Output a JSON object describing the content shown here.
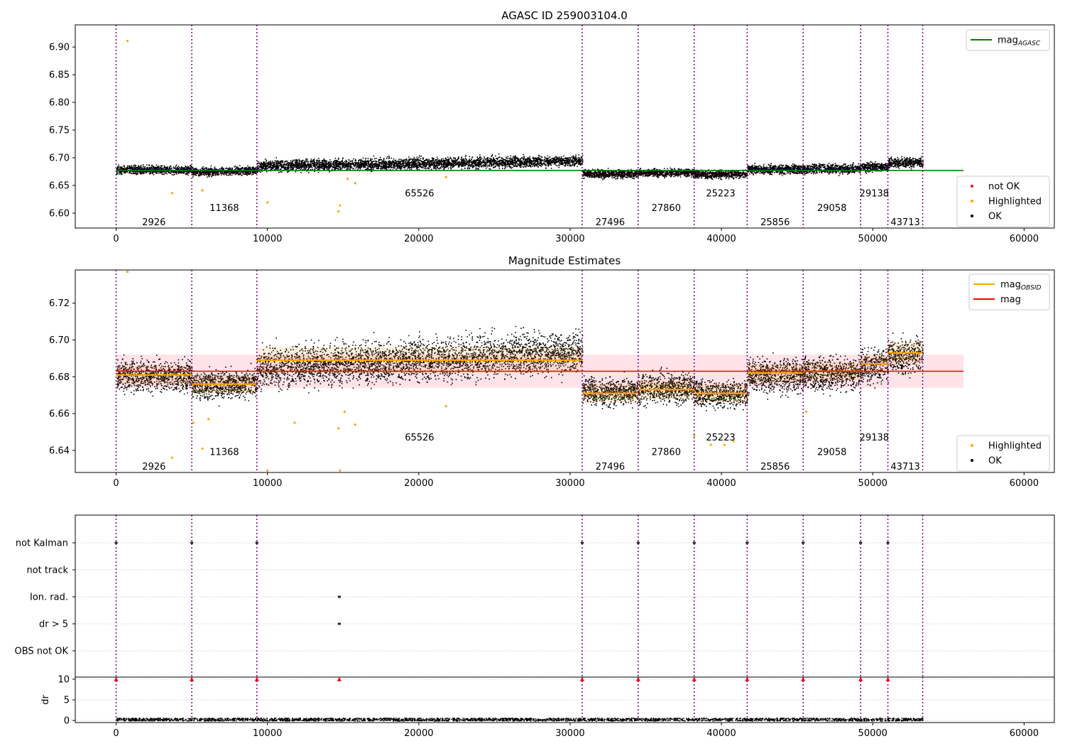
{
  "figure": {
    "title": "AGASC ID 259003104.0"
  },
  "colors": {
    "ok": "#000000",
    "highlighted": "#ffa500",
    "not_ok": "#ff0000",
    "obsid_line": "#800080",
    "mag_agasc": "#008000",
    "mag": "#ff0000",
    "mag_band": "#ffc0cb",
    "mag_obsid": "#ffa500"
  },
  "chart_data": [
    {
      "type": "scatter",
      "panel": "top",
      "title": "",
      "xlim": [
        -2700,
        62000
      ],
      "ylim": [
        6.573,
        6.94
      ],
      "xticks": [
        0,
        10000,
        20000,
        30000,
        40000,
        50000,
        60000
      ],
      "yticks": [
        6.6,
        6.65,
        6.7,
        6.75,
        6.8,
        6.85,
        6.9
      ],
      "ytick_decimals": 2,
      "grid": false,
      "legend_upper": {
        "position": "top-right",
        "entries": [
          {
            "label": "mag",
            "sub": "AGASC",
            "kind": "line",
            "color": "#008000"
          }
        ]
      },
      "legend_lower": {
        "position": "bottom-right",
        "entries": [
          {
            "label": "not OK",
            "kind": "dot",
            "color": "#ff0000"
          },
          {
            "label": "Highlighted",
            "kind": "dot",
            "color": "#ffa500"
          },
          {
            "label": "OK",
            "kind": "dot",
            "color": "#000000"
          }
        ]
      },
      "mag_agasc": {
        "value": 6.677,
        "x": [
          0,
          56000
        ]
      },
      "segments": [
        {
          "obsid": "2926",
          "x0": 0,
          "x1": 5000,
          "base": 6.679,
          "slope": 0.0,
          "spread": 0.008,
          "label_y": 6.583
        },
        {
          "obsid": "11368",
          "x0": 5000,
          "x1": 9300,
          "base": 6.675,
          "slope": 0.003,
          "spread": 0.008,
          "label_y": 6.609
        },
        {
          "obsid": "65526",
          "x0": 9300,
          "x1": 30800,
          "base": 6.686,
          "slope": 0.009,
          "spread": 0.011,
          "label_y": 6.635
        },
        {
          "obsid": "27496",
          "x0": 30800,
          "x1": 34500,
          "base": 6.672,
          "slope": 0.0,
          "spread": 0.008,
          "label_y": 6.583
        },
        {
          "obsid": "27860",
          "x0": 34500,
          "x1": 38200,
          "base": 6.674,
          "slope": 0.0,
          "spread": 0.008,
          "label_y": 6.609
        },
        {
          "obsid": "25223",
          "x0": 38200,
          "x1": 41700,
          "base": 6.671,
          "slope": 0.0,
          "spread": 0.008,
          "label_y": 6.635
        },
        {
          "obsid": "25856",
          "x0": 41700,
          "x1": 45400,
          "base": 6.68,
          "slope": 0.0,
          "spread": 0.009,
          "label_y": 6.583
        },
        {
          "obsid": "29058",
          "x0": 45400,
          "x1": 49200,
          "base": 6.681,
          "slope": 0.0,
          "spread": 0.009,
          "label_y": 6.609
        },
        {
          "obsid": "29138",
          "x0": 49200,
          "x1": 51000,
          "base": 6.684,
          "slope": 0.0,
          "spread": 0.009,
          "label_y": 6.635
        },
        {
          "obsid": "43713",
          "x0": 51000,
          "x1": 53300,
          "base": 6.692,
          "slope": 0.0,
          "spread": 0.009,
          "label_y": 6.583
        }
      ],
      "obsid_lines": [
        0,
        5000,
        9300,
        30800,
        34500,
        38200,
        41700,
        45400,
        49200,
        51000,
        53300
      ],
      "highlighted_outliers": [
        {
          "x": 750,
          "y": 6.911
        },
        {
          "x": 3700,
          "y": 6.636
        },
        {
          "x": 5700,
          "y": 6.641
        },
        {
          "x": 10000,
          "y": 6.619
        },
        {
          "x": 14700,
          "y": 6.603
        },
        {
          "x": 14800,
          "y": 6.614
        },
        {
          "x": 15300,
          "y": 6.662
        },
        {
          "x": 15800,
          "y": 6.654
        },
        {
          "x": 21800,
          "y": 6.665
        }
      ]
    },
    {
      "type": "scatter",
      "panel": "middle",
      "title": "Magnitude Estimates",
      "xlim": [
        -2700,
        62000
      ],
      "ylim": [
        6.628,
        6.738
      ],
      "xticks": [
        0,
        10000,
        20000,
        30000,
        40000,
        50000,
        60000
      ],
      "yticks": [
        6.64,
        6.66,
        6.68,
        6.7,
        6.72
      ],
      "ytick_decimals": 2,
      "grid": false,
      "legend_upper": {
        "position": "top-right",
        "entries": [
          {
            "label": "mag",
            "sub": "OBSID",
            "kind": "line",
            "color": "#ffa500"
          },
          {
            "label": "mag",
            "sub": "",
            "kind": "line",
            "color": "#ff0000"
          }
        ]
      },
      "legend_lower": {
        "position": "bottom-right",
        "entries": [
          {
            "label": "Highlighted",
            "kind": "dot",
            "color": "#ffa500"
          },
          {
            "label": "OK",
            "kind": "dot",
            "color": "#000000"
          }
        ]
      },
      "mag": {
        "value": 6.683,
        "band": [
          6.674,
          6.692
        ],
        "x": [
          0,
          56000
        ]
      },
      "segments": [
        {
          "obsid": "2926",
          "x0": 0,
          "x1": 5000,
          "mean": 6.681,
          "base": 6.681,
          "slope": 0.0,
          "std": 0.005,
          "spread": 0.009,
          "label_y": 6.631
        },
        {
          "obsid": "11368",
          "x0": 5000,
          "x1": 9300,
          "mean": 6.676,
          "base": 6.675,
          "slope": 0.002,
          "std": 0.005,
          "spread": 0.008,
          "label_y": 6.639
        },
        {
          "obsid": "65526",
          "x0": 9300,
          "x1": 30800,
          "mean": 6.689,
          "base": 6.685,
          "slope": 0.009,
          "std": 0.007,
          "spread": 0.012,
          "label_y": 6.647
        },
        {
          "obsid": "27496",
          "x0": 30800,
          "x1": 34500,
          "mean": 6.671,
          "base": 6.672,
          "slope": 0.0,
          "std": 0.005,
          "spread": 0.008,
          "label_y": 6.631
        },
        {
          "obsid": "27860",
          "x0": 34500,
          "x1": 38200,
          "mean": 6.673,
          "base": 6.674,
          "slope": 0.0,
          "std": 0.005,
          "spread": 0.009,
          "label_y": 6.639
        },
        {
          "obsid": "25223",
          "x0": 38200,
          "x1": 41700,
          "mean": 6.671,
          "base": 6.671,
          "slope": 0.0,
          "std": 0.005,
          "spread": 0.008,
          "label_y": 6.647
        },
        {
          "obsid": "25856",
          "x0": 41700,
          "x1": 45400,
          "mean": 6.682,
          "base": 6.681,
          "slope": 0.0,
          "std": 0.005,
          "spread": 0.01,
          "label_y": 6.631
        },
        {
          "obsid": "29058",
          "x0": 45400,
          "x1": 49200,
          "mean": 6.683,
          "base": 6.682,
          "slope": 0.0,
          "std": 0.005,
          "spread": 0.01,
          "label_y": 6.639
        },
        {
          "obsid": "29138",
          "x0": 49200,
          "x1": 51000,
          "mean": 6.687,
          "base": 6.686,
          "slope": 0.0,
          "std": 0.005,
          "spread": 0.01,
          "label_y": 6.647
        },
        {
          "obsid": "43713",
          "x0": 51000,
          "x1": 53300,
          "mean": 6.693,
          "base": 6.692,
          "slope": 0.0,
          "std": 0.006,
          "spread": 0.01,
          "label_y": 6.631
        }
      ],
      "obsid_lines": [
        0,
        5000,
        9300,
        30800,
        34500,
        38200,
        41700,
        45400,
        49200,
        51000,
        53300
      ],
      "highlighted_outliers": [
        {
          "x": 750,
          "y": 6.737
        },
        {
          "x": 3700,
          "y": 6.636
        },
        {
          "x": 5700,
          "y": 6.641
        },
        {
          "x": 5100,
          "y": 6.655
        },
        {
          "x": 6100,
          "y": 6.657
        },
        {
          "x": 10000,
          "y": 6.629
        },
        {
          "x": 14700,
          "y": 6.652
        },
        {
          "x": 14800,
          "y": 6.629
        },
        {
          "x": 15100,
          "y": 6.661
        },
        {
          "x": 15800,
          "y": 6.654
        },
        {
          "x": 11800,
          "y": 6.655
        },
        {
          "x": 21800,
          "y": 6.664
        },
        {
          "x": 38200,
          "y": 6.648
        },
        {
          "x": 39300,
          "y": 6.643
        },
        {
          "x": 40200,
          "y": 6.643
        },
        {
          "x": 40800,
          "y": 6.645
        },
        {
          "x": 45600,
          "y": 6.661
        }
      ]
    },
    {
      "type": "scatter",
      "panel": "flags",
      "title": "",
      "xlim": [
        -2700,
        62000
      ],
      "ylim": [
        -0.5,
        4.5
      ],
      "categories": [
        "OBS not OK",
        "dr > 5",
        "Ion. rad.",
        "not track",
        "not Kalman"
      ],
      "grid": true,
      "points": [
        {
          "category": "not Kalman",
          "x": [
            0,
            5000,
            9300,
            30800,
            34500,
            38200,
            41700,
            45400,
            49200,
            51000
          ]
        },
        {
          "category": "Ion. rad.",
          "x": [
            14750
          ]
        },
        {
          "category": "dr > 5",
          "x": [
            14750
          ]
        }
      ],
      "obsid_lines": [
        0,
        5000,
        9300,
        30800,
        34500,
        38200,
        41700,
        45400,
        49200,
        51000,
        53300
      ]
    },
    {
      "type": "scatter",
      "panel": "dr",
      "title": "",
      "ylabel": "dr",
      "xlim": [
        -2700,
        62000
      ],
      "ylim": [
        -0.5,
        10.5
      ],
      "xticks": [
        0,
        10000,
        20000,
        30000,
        40000,
        50000,
        60000
      ],
      "yticks": [
        0,
        5,
        10
      ],
      "grid": true,
      "dr_band": {
        "x": [
          0,
          53300
        ],
        "y": [
          0.0,
          0.7
        ]
      },
      "capped_points": {
        "y": 10,
        "x": [
          0,
          5000,
          9300,
          14750,
          30800,
          34500,
          38200,
          41700,
          45400,
          49200,
          51000
        ]
      },
      "obsid_lines": [
        0,
        5000,
        9300,
        30800,
        34500,
        38200,
        41700,
        45400,
        49200,
        51000,
        53300
      ]
    }
  ]
}
